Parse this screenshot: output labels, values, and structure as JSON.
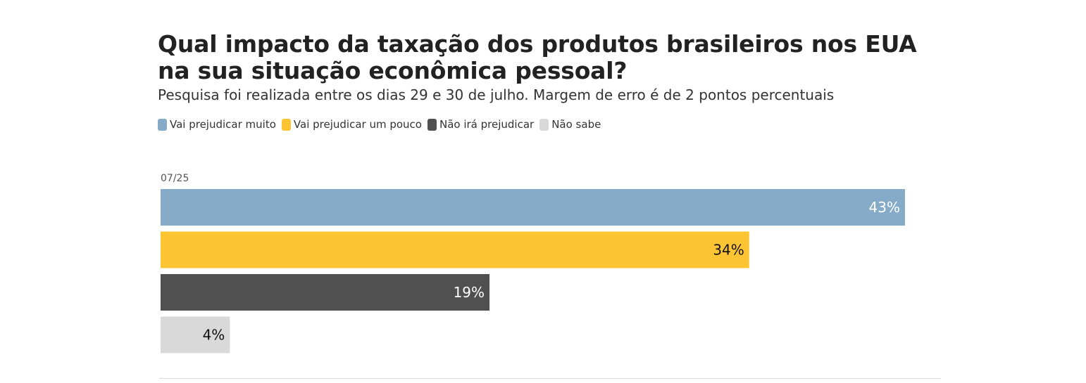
{
  "chart_data": {
    "type": "bar",
    "orientation": "horizontal",
    "title": "Qual impacto da taxação dos produtos brasileiros nos EUA na sua situação econômica pessoal?",
    "subtitle": "Pesquisa foi realizada entre os dias 29 e 30 de julho. Margem de erro é de 2 pontos percentuais",
    "legend_position": "top-left",
    "period": "07/25",
    "xlim": [
      0,
      43
    ],
    "grid": false,
    "series": [
      {
        "name": "Vai prejudicar muito",
        "value": 43,
        "label": "43%",
        "color": "#86ABC9",
        "label_color": "#ffffff"
      },
      {
        "name": "Vai prejudicar um pouco",
        "value": 34,
        "label": "34%",
        "color": "#FDC534",
        "label_color": "#111111"
      },
      {
        "name": "Não irá prejudicar",
        "value": 19,
        "label": "19%",
        "color": "#505050",
        "label_color": "#ffffff"
      },
      {
        "name": "Não sabe",
        "value": 4,
        "label": "4%",
        "color": "#D9D9D9",
        "label_color": "#111111"
      }
    ]
  }
}
